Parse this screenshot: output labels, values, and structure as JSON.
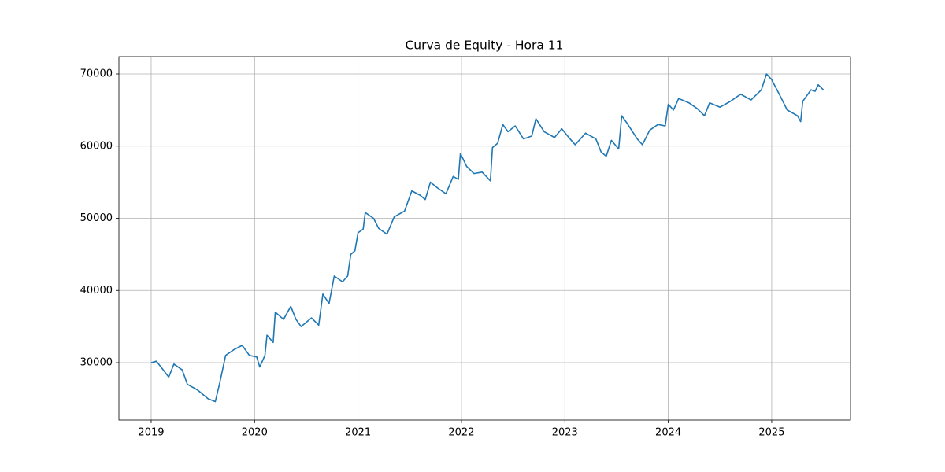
{
  "chart_data": {
    "type": "line",
    "title": "Curva de Equity - Hora 11",
    "x": [
      2019.0,
      2019.05,
      2019.1,
      2019.17,
      2019.22,
      2019.3,
      2019.35,
      2019.45,
      2019.55,
      2019.62,
      2019.66,
      2019.72,
      2019.8,
      2019.88,
      2019.95,
      2020.02,
      2020.05,
      2020.1,
      2020.12,
      2020.18,
      2020.2,
      2020.28,
      2020.35,
      2020.4,
      2020.45,
      2020.55,
      2020.62,
      2020.66,
      2020.72,
      2020.77,
      2020.85,
      2020.9,
      2020.93,
      2020.97,
      2021.0,
      2021.05,
      2021.07,
      2021.15,
      2021.2,
      2021.28,
      2021.35,
      2021.45,
      2021.52,
      2021.6,
      2021.65,
      2021.7,
      2021.77,
      2021.85,
      2021.92,
      2021.97,
      2021.99,
      2022.05,
      2022.12,
      2022.2,
      2022.28,
      2022.3,
      2022.35,
      2022.4,
      2022.45,
      2022.52,
      2022.6,
      2022.68,
      2022.72,
      2022.8,
      2022.9,
      2022.97,
      2023.05,
      2023.1,
      2023.2,
      2023.3,
      2023.35,
      2023.4,
      2023.45,
      2023.52,
      2023.55,
      2023.6,
      2023.7,
      2023.75,
      2023.82,
      2023.9,
      2023.97,
      2024.0,
      2024.05,
      2024.1,
      2024.2,
      2024.28,
      2024.35,
      2024.4,
      2024.5,
      2024.6,
      2024.7,
      2024.8,
      2024.9,
      2024.95,
      2025.0,
      2025.08,
      2025.15,
      2025.25,
      2025.28,
      2025.3,
      2025.38,
      2025.42,
      2025.45,
      2025.5
    ],
    "series": [
      {
        "color": "#1f77b4",
        "values": [
          30000,
          30200,
          29300,
          28000,
          29800,
          29000,
          27000,
          26200,
          25000,
          24600,
          27000,
          31000,
          31800,
          32400,
          31000,
          30800,
          29400,
          31000,
          33800,
          32800,
          37000,
          36000,
          37800,
          36000,
          35000,
          36200,
          35200,
          39500,
          38200,
          42000,
          41200,
          42000,
          45000,
          45500,
          48000,
          48500,
          50800,
          50000,
          48600,
          47800,
          50200,
          51000,
          53800,
          53200,
          52600,
          55000,
          54200,
          53400,
          55800,
          55400,
          59000,
          57200,
          56200,
          56400,
          55200,
          59800,
          60400,
          63000,
          62000,
          62800,
          61000,
          61400,
          63800,
          62000,
          61200,
          62400,
          61000,
          60200,
          61800,
          61000,
          59200,
          58600,
          60800,
          59600,
          64200,
          63200,
          61000,
          60200,
          62200,
          63000,
          62800,
          65800,
          65000,
          66600,
          66000,
          65200,
          64200,
          66000,
          65400,
          66200,
          67200,
          66400,
          67800,
          70000,
          69200,
          67000,
          65000,
          64200,
          63400,
          66200,
          67800,
          67600,
          68500,
          67800
        ]
      }
    ],
    "xlim": [
      2018.688,
      2025.762
    ],
    "xticks": [
      2019,
      2020,
      2021,
      2022,
      2023,
      2024,
      2025
    ],
    "ylim": [
      22044,
      72398
    ],
    "yticks": [
      30000,
      40000,
      50000,
      60000,
      70000
    ],
    "grid": true
  }
}
